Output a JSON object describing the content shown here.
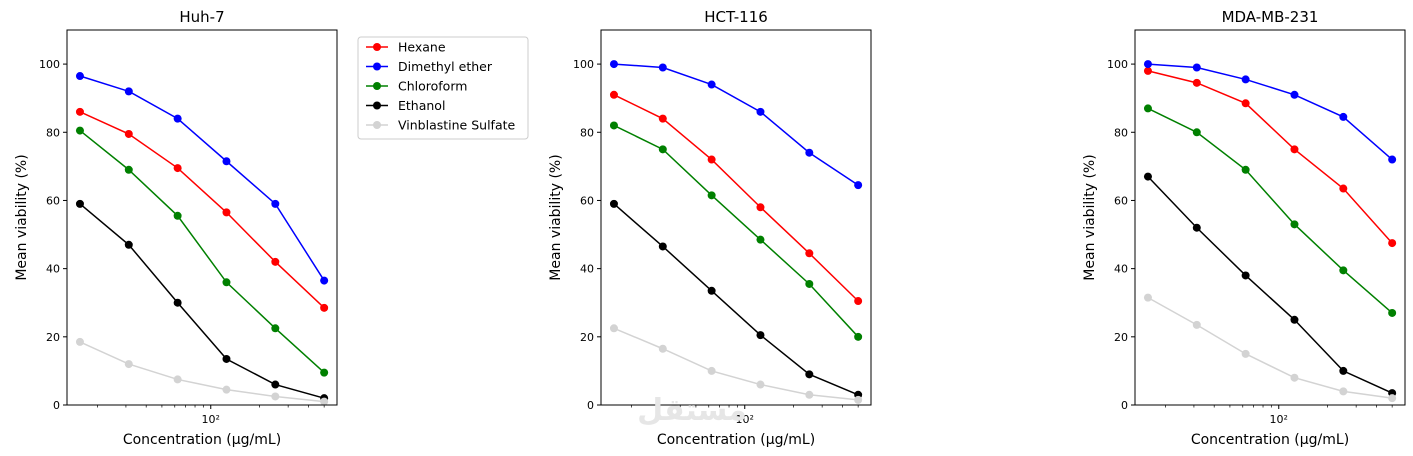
{
  "chart_data": [
    {
      "type": "line",
      "title": "Huh-7",
      "xlabel": "Concentration (µg/mL)",
      "ylabel": "Mean viability (%)",
      "xscale": "log",
      "x": [
        15.625,
        31.25,
        62.5,
        125,
        250,
        500
      ],
      "ylim": [
        0,
        110
      ],
      "yticks": [
        0,
        20,
        40,
        60,
        80,
        100
      ],
      "xtick_label": "10²",
      "series": [
        {
          "name": "Hexane",
          "color": "#ff0000",
          "values": [
            86,
            79.5,
            69.5,
            56.5,
            42,
            28.5
          ]
        },
        {
          "name": "Dimethyl ether",
          "color": "#0000ff",
          "values": [
            96.5,
            92,
            84,
            71.5,
            59,
            36.5
          ]
        },
        {
          "name": "Chloroform",
          "color": "#008000",
          "values": [
            80.5,
            69,
            55.5,
            36,
            22.5,
            9.5
          ]
        },
        {
          "name": "Ethanol",
          "color": "#000000",
          "values": [
            59,
            47,
            30,
            13.5,
            6,
            2
          ]
        },
        {
          "name": "Vinblastine Sulfate",
          "color": "#d3d3d3",
          "values": [
            18.5,
            12,
            7.5,
            4.5,
            2.5,
            1
          ]
        }
      ]
    },
    {
      "type": "line",
      "title": "HCT-116",
      "xlabel": "Concentration (µg/mL)",
      "ylabel": "Mean viability (%)",
      "xscale": "log",
      "x": [
        15.625,
        31.25,
        62.5,
        125,
        250,
        500
      ],
      "ylim": [
        0,
        110
      ],
      "yticks": [
        0,
        20,
        40,
        60,
        80,
        100
      ],
      "xtick_label": "10²",
      "series": [
        {
          "name": "Hexane",
          "color": "#ff0000",
          "values": [
            91,
            84,
            72,
            58,
            44.5,
            30.5
          ]
        },
        {
          "name": "Dimethyl ether",
          "color": "#0000ff",
          "values": [
            100,
            99,
            94,
            86,
            74,
            64.5
          ]
        },
        {
          "name": "Chloroform",
          "color": "#008000",
          "values": [
            82,
            75,
            61.5,
            48.5,
            35.5,
            20
          ]
        },
        {
          "name": "Ethanol",
          "color": "#000000",
          "values": [
            59,
            46.5,
            33.5,
            20.5,
            9,
            3
          ]
        },
        {
          "name": "Vinblastine Sulfate",
          "color": "#d3d3d3",
          "values": [
            22.5,
            16.5,
            10,
            6,
            3,
            1.5
          ]
        }
      ]
    },
    {
      "type": "line",
      "title": "MDA-MB-231",
      "xlabel": "Concentration (µg/mL)",
      "ylabel": "Mean viability (%)",
      "xscale": "log",
      "x": [
        15.625,
        31.25,
        62.5,
        125,
        250,
        500
      ],
      "ylim": [
        0,
        110
      ],
      "yticks": [
        0,
        20,
        40,
        60,
        80,
        100
      ],
      "xtick_label": "10²",
      "series": [
        {
          "name": "Hexane",
          "color": "#ff0000",
          "values": [
            98,
            94.5,
            88.5,
            75,
            63.5,
            47.5
          ]
        },
        {
          "name": "Dimethyl ether",
          "color": "#0000ff",
          "values": [
            100,
            99,
            95.5,
            91,
            84.5,
            72
          ]
        },
        {
          "name": "Chloroform",
          "color": "#008000",
          "values": [
            87,
            80,
            69,
            53,
            39.5,
            27
          ]
        },
        {
          "name": "Ethanol",
          "color": "#000000",
          "values": [
            67,
            52,
            38,
            25,
            10,
            3.5
          ]
        },
        {
          "name": "Vinblastine Sulfate",
          "color": "#d3d3d3",
          "values": [
            31.5,
            23.5,
            15,
            8,
            4,
            2
          ]
        }
      ]
    }
  ],
  "legend": {
    "position": "upper-left-outside-first-panel",
    "entries": [
      "Hexane",
      "Dimethyl ether",
      "Chloroform",
      "Ethanol",
      "Vinblastine Sulfate"
    ]
  },
  "watermark": {
    "text": "مستقل"
  }
}
